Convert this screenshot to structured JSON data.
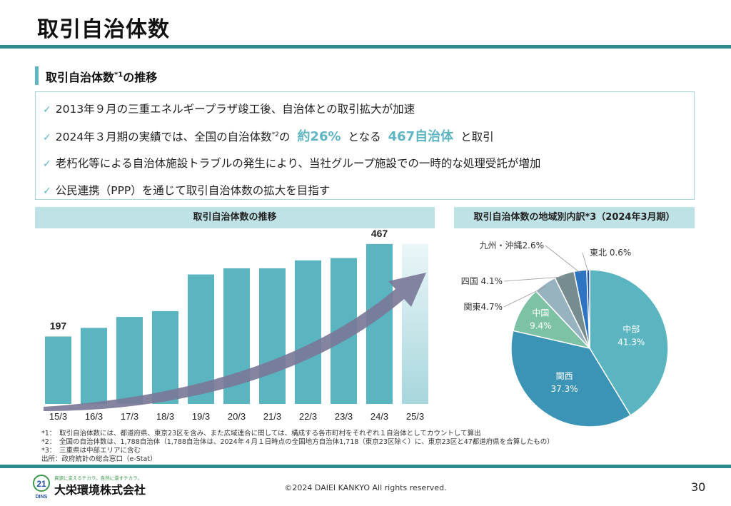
{
  "title": "取引自治体数",
  "section": {
    "heading": "取引自治体数",
    "heading_sup": "*1",
    "heading_tail": "の推移"
  },
  "bullets": {
    "b1": "2013年９月の三重エネルギープラザ竣工後、自治体との取引拡大が加速",
    "b2_pre": "2024年３月期の実績では、全国の自治体数",
    "b2_sup": "*2",
    "b2_mid": "の",
    "b2_hl1": "約26%",
    "b2_mid2": "となる",
    "b2_hl2": "467自治体",
    "b2_post": "と取引",
    "b3": "老朽化等による自治体施設トラブルの発生により、当社グループ施設での一時的な処理受託が増加",
    "b4": "公民連携（PPP）を通じて取引自治体数の拡大を目指す"
  },
  "bar_panel": {
    "title": "取引自治体数の推移"
  },
  "pie_panel": {
    "title": "取引自治体数の地域別内訳*3（2024年3月期）"
  },
  "chart_data": [
    {
      "type": "bar",
      "title": "取引自治体数の推移",
      "categories": [
        "15/3",
        "16/3",
        "17/3",
        "18/3",
        "19/3",
        "20/3",
        "21/3",
        "22/3",
        "23/3",
        "24/3",
        "25/3"
      ],
      "values": [
        197,
        222,
        254,
        271,
        378,
        396,
        396,
        419,
        426,
        467,
        null
      ],
      "data_labels": {
        "15/3": "197",
        "24/3": "467"
      },
      "ylim": [
        0,
        500
      ],
      "color": "#5ab5c0",
      "projection_color": "#d9eef1",
      "arrow_color": "#7a7a99"
    },
    {
      "type": "pie",
      "title": "取引自治体数の地域別内訳*3（2024年3月期）",
      "slices": [
        {
          "label": "中部",
          "value": 41.3,
          "text": "41.3%",
          "color": "#5ab5c0"
        },
        {
          "label": "関西",
          "value": 37.3,
          "text": "37.3%",
          "color": "#3b94b6"
        },
        {
          "label": "中国",
          "value": 9.4,
          "text": "9.4%",
          "color": "#7dc2a4"
        },
        {
          "label": "関東",
          "value": 4.7,
          "text": "関東4.7%",
          "color": "#96b3bf"
        },
        {
          "label": "四国",
          "value": 4.1,
          "text": "四国 4.1%",
          "color": "#768c8f"
        },
        {
          "label": "九州・沖縄",
          "value": 2.6,
          "text": "九州・沖縄2.6%",
          "color": "#2d74c3"
        },
        {
          "label": "東北",
          "value": 0.6,
          "text": "東北 0.6%",
          "color": "#1f4fa8"
        }
      ]
    }
  ],
  "footnotes": {
    "f1": "*1：　取引自治体数には、都道府県、東京23区を含み、また広域連合に関しては、構成する各市町村をそれぞれ１自治体としてカウントして算出",
    "f2": "*2：　全国の自治体数は、1,788自治体（1,788自治体は、2024年４月１日時点の全国地方自治体1,718（東京23区除く）に、東京23区と47都道府県を合算したもの）",
    "f3": "*3：　三重県は中部エリアに含む",
    "f4": "出所：政府統計の総合窓口（e-Stat）"
  },
  "footer": {
    "logo_text": "大栄環境株式会社",
    "logo_tagline": "資源に変えるチカラ。自然に還すチカラ。",
    "logo_mark": "21",
    "logo_sub": "DINS",
    "copyright": "©2024 DAIEI KANKYO All rights reserved.",
    "page_number": "30"
  }
}
